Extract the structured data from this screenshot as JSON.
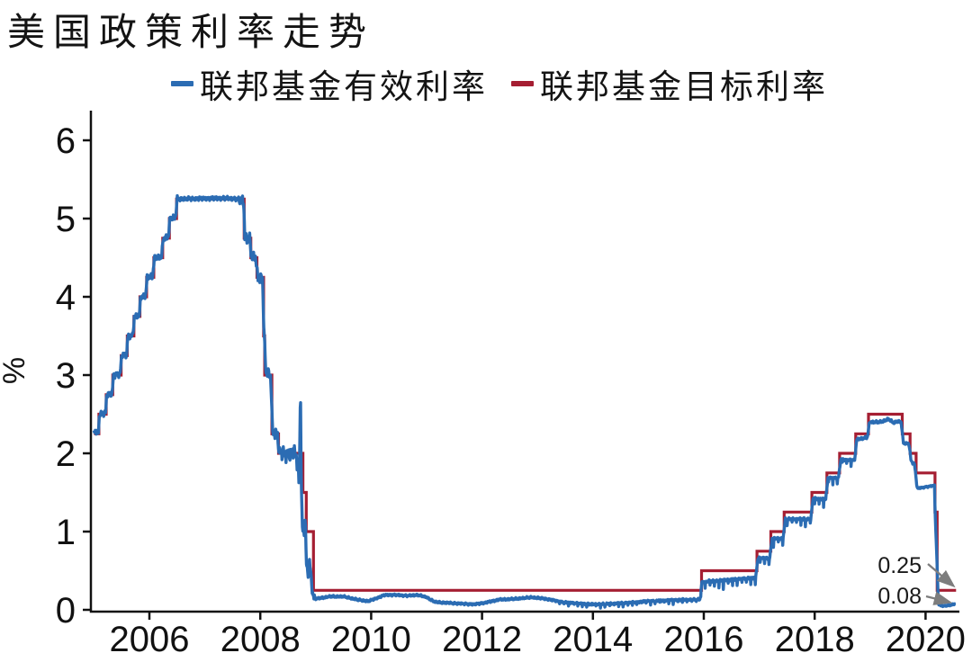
{
  "page": {
    "title": "美国政策利率走势"
  },
  "legend": {
    "items": [
      {
        "label": "联邦基金有效利率",
        "color": "#2b6cb3"
      },
      {
        "label": "联邦基金目标利率",
        "color": "#a51e32"
      }
    ]
  },
  "chart_data": {
    "type": "line",
    "title": "美国政策利率走势",
    "xlabel": "",
    "ylabel": "%",
    "xlim": [
      2005,
      2020.55
    ],
    "ylim": [
      0,
      6
    ],
    "xticks": [
      2006,
      2008,
      2010,
      2012,
      2014,
      2016,
      2018,
      2020
    ],
    "yticks": [
      0,
      1,
      2,
      3,
      4,
      5,
      6
    ],
    "grid": false,
    "legend_position": "top",
    "series": [
      {
        "name": "联邦基金有效利率",
        "color": "#2b6cb3",
        "style": "noisy",
        "points": [
          [
            2005.0,
            2.28
          ],
          [
            2005.08,
            2.26
          ],
          [
            2005.1,
            2.5
          ],
          [
            2005.21,
            2.52
          ],
          [
            2005.23,
            2.75
          ],
          [
            2005.33,
            2.76
          ],
          [
            2005.35,
            3.0
          ],
          [
            2005.47,
            3.01
          ],
          [
            2005.5,
            3.25
          ],
          [
            2005.59,
            3.26
          ],
          [
            2005.61,
            3.5
          ],
          [
            2005.7,
            3.51
          ],
          [
            2005.73,
            3.75
          ],
          [
            2005.82,
            3.76
          ],
          [
            2005.84,
            4.0
          ],
          [
            2005.93,
            4.01
          ],
          [
            2005.96,
            4.25
          ],
          [
            2006.06,
            4.26
          ],
          [
            2006.09,
            4.5
          ],
          [
            2006.22,
            4.51
          ],
          [
            2006.25,
            4.75
          ],
          [
            2006.34,
            4.76
          ],
          [
            2006.37,
            5.0
          ],
          [
            2006.47,
            5.01
          ],
          [
            2006.5,
            5.25
          ],
          [
            2007.35,
            5.26
          ],
          [
            2007.6,
            5.25
          ],
          [
            2007.7,
            5.22
          ],
          [
            2007.72,
            4.76
          ],
          [
            2007.81,
            4.74
          ],
          [
            2007.84,
            4.51
          ],
          [
            2007.92,
            4.49
          ],
          [
            2007.95,
            4.26
          ],
          [
            2008.04,
            4.22
          ],
          [
            2008.07,
            3.52
          ],
          [
            2008.1,
            3.05
          ],
          [
            2008.19,
            2.98
          ],
          [
            2008.22,
            2.28
          ],
          [
            2008.31,
            2.24
          ],
          [
            2008.34,
            2.02
          ],
          [
            2008.5,
            1.98
          ],
          [
            2008.62,
            2.02
          ],
          [
            2008.68,
            1.85
          ],
          [
            2008.7,
            1.6
          ],
          [
            2008.715,
            2.2
          ],
          [
            2008.725,
            2.95
          ],
          [
            2008.74,
            1.6
          ],
          [
            2008.76,
            1.05
          ],
          [
            2008.79,
            0.95
          ],
          [
            2008.81,
            1.2
          ],
          [
            2008.83,
            0.6
          ],
          [
            2008.86,
            0.45
          ],
          [
            2008.89,
            0.62
          ],
          [
            2008.92,
            0.38
          ],
          [
            2008.95,
            0.18
          ],
          [
            2009.0,
            0.14
          ],
          [
            2009.25,
            0.17
          ],
          [
            2009.5,
            0.17
          ],
          [
            2009.75,
            0.13
          ],
          [
            2009.95,
            0.11
          ],
          [
            2010.1,
            0.15
          ],
          [
            2010.25,
            0.19
          ],
          [
            2010.45,
            0.19
          ],
          [
            2010.65,
            0.18
          ],
          [
            2010.85,
            0.19
          ],
          [
            2011.0,
            0.16
          ],
          [
            2011.15,
            0.1
          ],
          [
            2011.35,
            0.09
          ],
          [
            2011.6,
            0.08
          ],
          [
            2011.85,
            0.07
          ],
          [
            2012.05,
            0.09
          ],
          [
            2012.3,
            0.13
          ],
          [
            2012.6,
            0.14
          ],
          [
            2012.9,
            0.16
          ],
          [
            2013.15,
            0.14
          ],
          [
            2013.45,
            0.1
          ],
          [
            2013.75,
            0.08
          ],
          [
            2014.05,
            0.07
          ],
          [
            2014.35,
            0.08
          ],
          [
            2014.65,
            0.09
          ],
          [
            2014.95,
            0.11
          ],
          [
            2015.3,
            0.12
          ],
          [
            2015.65,
            0.13
          ],
          [
            2015.93,
            0.13
          ],
          [
            2015.97,
            0.36
          ],
          [
            2016.25,
            0.37
          ],
          [
            2016.55,
            0.39
          ],
          [
            2016.93,
            0.41
          ],
          [
            2016.98,
            0.66
          ],
          [
            2017.19,
            0.66
          ],
          [
            2017.23,
            0.91
          ],
          [
            2017.43,
            0.91
          ],
          [
            2017.47,
            1.16
          ],
          [
            2017.93,
            1.16
          ],
          [
            2017.97,
            1.42
          ],
          [
            2018.2,
            1.42
          ],
          [
            2018.24,
            1.68
          ],
          [
            2018.43,
            1.69
          ],
          [
            2018.47,
            1.92
          ],
          [
            2018.72,
            1.91
          ],
          [
            2018.76,
            2.18
          ],
          [
            2018.95,
            2.2
          ],
          [
            2018.99,
            2.4
          ],
          [
            2019.2,
            2.4
          ],
          [
            2019.33,
            2.44
          ],
          [
            2019.42,
            2.39
          ],
          [
            2019.5,
            2.41
          ],
          [
            2019.56,
            2.4
          ],
          [
            2019.6,
            2.13
          ],
          [
            2019.7,
            2.12
          ],
          [
            2019.74,
            1.9
          ],
          [
            2019.8,
            1.86
          ],
          [
            2019.85,
            1.55
          ],
          [
            2020.0,
            1.57
          ],
          [
            2020.1,
            1.58
          ],
          [
            2020.16,
            1.59
          ],
          [
            2020.18,
            1.1
          ],
          [
            2020.205,
            0.65
          ],
          [
            2020.23,
            0.08
          ],
          [
            2020.28,
            0.05
          ],
          [
            2020.36,
            0.05
          ],
          [
            2020.44,
            0.06
          ],
          [
            2020.5,
            0.07
          ],
          [
            2020.55,
            0.08
          ]
        ]
      },
      {
        "name": "联邦基金目标利率",
        "color": "#a51e32",
        "style": "step",
        "points": [
          [
            2005.0,
            2.25
          ],
          [
            2005.09,
            2.5
          ],
          [
            2005.22,
            2.75
          ],
          [
            2005.34,
            3.0
          ],
          [
            2005.49,
            3.25
          ],
          [
            2005.6,
            3.5
          ],
          [
            2005.72,
            3.75
          ],
          [
            2005.83,
            4.0
          ],
          [
            2005.95,
            4.25
          ],
          [
            2006.08,
            4.5
          ],
          [
            2006.24,
            4.75
          ],
          [
            2006.36,
            5.0
          ],
          [
            2006.49,
            5.25
          ],
          [
            2007.71,
            4.75
          ],
          [
            2007.83,
            4.5
          ],
          [
            2007.94,
            4.25
          ],
          [
            2008.06,
            3.5
          ],
          [
            2008.08,
            3.0
          ],
          [
            2008.21,
            2.25
          ],
          [
            2008.33,
            2.0
          ],
          [
            2008.77,
            1.5
          ],
          [
            2008.83,
            1.0
          ],
          [
            2008.96,
            0.25
          ],
          [
            2015.96,
            0.5
          ],
          [
            2016.96,
            0.75
          ],
          [
            2017.21,
            1.0
          ],
          [
            2017.45,
            1.25
          ],
          [
            2017.95,
            1.5
          ],
          [
            2018.22,
            1.75
          ],
          [
            2018.45,
            2.0
          ],
          [
            2018.74,
            2.25
          ],
          [
            2018.97,
            2.5
          ],
          [
            2019.58,
            2.25
          ],
          [
            2019.72,
            2.0
          ],
          [
            2019.83,
            1.75
          ],
          [
            2020.17,
            1.25
          ],
          [
            2020.21,
            0.25
          ],
          [
            2020.55,
            0.25
          ]
        ]
      }
    ],
    "annotations": [
      {
        "text": "0.25",
        "series": "联邦基金目标利率",
        "x": 2020.5,
        "y": 0.25
      },
      {
        "text": "0.08",
        "series": "联邦基金有效利率",
        "x": 2020.55,
        "y": 0.08
      }
    ]
  }
}
